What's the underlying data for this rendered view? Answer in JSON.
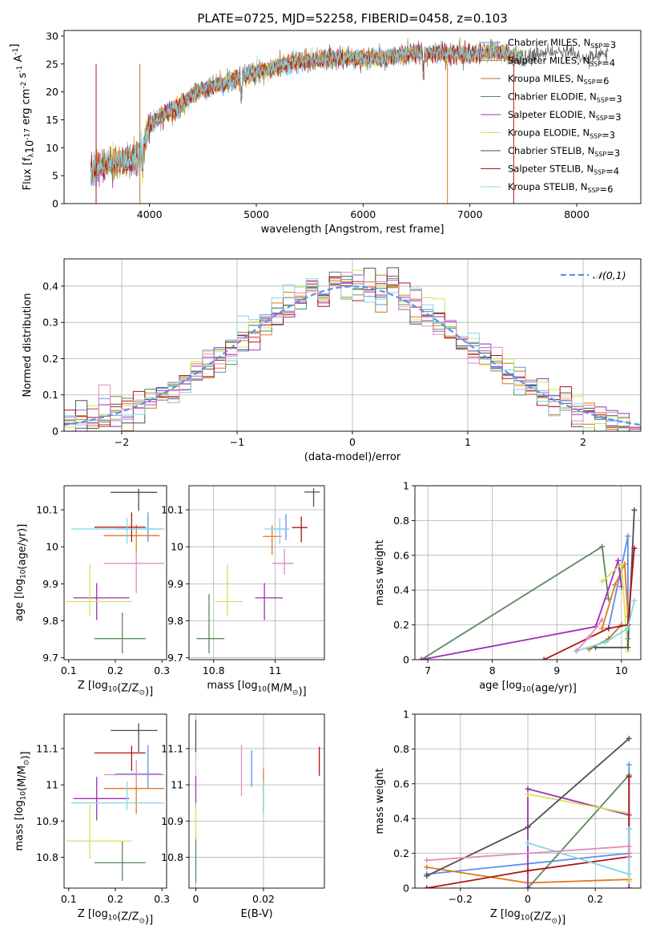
{
  "figure": {
    "sed": {
      "title": "PLATE=0725, MJD=52258, FIBERID=0458, z=0.103",
      "xlabel": "wavelength [Angstrom, rest frame]",
      "ylabel": "Flux [f$_{\\lambda}$10$^{-17}$ erg cm$^{-2}$ s$^{-1}$ A$^{-1}$]"
    },
    "hist": {
      "xlabel": "(data-model)/error",
      "ylabel": "Normed distribution",
      "legend": "$\\mathcal{N}(0,1)$"
    },
    "p3": {
      "xlabel": "Z [log$_{10}$(Z/Z$_{\\odot}$)]",
      "ylabel": "age  [log$_{10}$(age/yr)]"
    },
    "p4": {
      "xlabel": "mass [log$_{10}$(M/M$_{\\odot}$)]"
    },
    "p5": {
      "xlabel": "age  [log$_{10}$(age/yr)]",
      "ylabel": "mass weight"
    },
    "p6": {
      "xlabel": "Z [log$_{10}$(Z/Z$_{\\odot}$)]",
      "ylabel": "mass [log$_{10}$(M/M$_{\\odot}$)]"
    },
    "p7": {
      "xlabel": "E(B-V)"
    },
    "p8": {
      "xlabel": "Z [log$_{10}$(Z/Z$_{\\odot}$)]",
      "ylabel": "mass weight"
    }
  },
  "models": [
    {
      "name": "Chabrier MILES, N$_{SSP}$=3",
      "color": "#5b8ff0"
    },
    {
      "name": "Salpeter MILES, N$_{SSP}$=4",
      "color": "#e37a1e"
    },
    {
      "name": "Kroupa MILES, N$_{SSP}$=6",
      "color": "#b37a2a"
    },
    {
      "name": "Chabrier ELODIE, N$_{SSP}$=3",
      "color": "#5a8a5a"
    },
    {
      "name": "Salpeter ELODIE, N$_{SSP}$=3",
      "color": "#9e2fb5"
    },
    {
      "name": "Kroupa ELODIE, N$_{SSP}$=3",
      "color": "#d2e35a"
    },
    {
      "name": "Chabrier STELIB, N$_{SSP}$=3",
      "color": "#4f4f4f"
    },
    {
      "name": "Salpeter STELIB, N$_{SSP}$=4",
      "color": "#b01515"
    },
    {
      "name": "Kroupa STELIB, N$_{SSP}$=6",
      "color": "#7fd8e6"
    }
  ],
  "chart_data": [
    {
      "id": "sed",
      "type": "line",
      "title": "PLATE=0725, MJD=52258, FIBERID=0458, z=0.103",
      "xlabel": "wavelength [Angstrom, rest frame]",
      "ylabel": "Flux [f_lambda 10^-17 erg cm^-2 s^-1 A^-1]",
      "xlim": [
        3200,
        8600
      ],
      "ylim": [
        0,
        31
      ],
      "xticks": [
        4000,
        5000,
        6000,
        7000,
        8000
      ],
      "yticks": [
        0,
        5,
        10,
        15,
        20,
        25,
        30
      ],
      "grid": false,
      "legend": "top-right",
      "x": [
        3450,
        3500,
        3600,
        3700,
        3800,
        3900,
        3950,
        4000,
        4100,
        4200,
        4300,
        4400,
        4500,
        4600,
        4700,
        4800,
        4900,
        5000,
        5100,
        5200,
        5300,
        5400,
        5500,
        5600,
        5700,
        5800,
        5900,
        6000,
        6100,
        6200,
        6300,
        6400,
        6500,
        6600,
        6700,
        6800,
        6900,
        7000,
        7100,
        7200,
        7300,
        7400,
        7500,
        7600,
        7700,
        7800,
        7900,
        8000,
        8100,
        8200,
        8300
      ],
      "y": [
        5.5,
        6.0,
        7.0,
        7.5,
        8.0,
        8.5,
        10.5,
        14.0,
        15.5,
        16.5,
        17.5,
        19.5,
        20.5,
        21.0,
        21.5,
        22.0,
        23.0,
        23.5,
        24.0,
        24.5,
        25.0,
        25.5,
        25.5,
        25.8,
        26.0,
        26.0,
        26.0,
        26.0,
        26.0,
        26.2,
        26.5,
        26.8,
        27.0,
        27.0,
        27.0,
        26.8,
        26.8,
        26.8,
        27.0,
        27.2,
        27.0,
        26.5,
        26.0,
        26.5,
        26.8,
        27.0,
        27.0,
        26.5,
        26.0,
        26.5,
        26.8
      ]
    },
    {
      "id": "hist",
      "type": "line",
      "xlabel": "(data-model)/error",
      "ylabel": "Normed distribution",
      "xlim": [
        -2.5,
        2.5
      ],
      "ylim": [
        0,
        0.475
      ],
      "xticks": [
        -2,
        -1,
        0,
        1,
        2
      ],
      "yticks": [
        0.0,
        0.1,
        0.2,
        0.3,
        0.4
      ],
      "grid": true,
      "legend": "top-right",
      "series": [
        {
          "name": "$\\mathcal{N}(0,1)$",
          "x": [
            -2.5,
            -2.0,
            -1.5,
            -1.0,
            -0.5,
            0.0,
            0.5,
            1.0,
            1.5,
            2.0,
            2.5
          ],
          "y": [
            0.018,
            0.054,
            0.13,
            0.242,
            0.352,
            0.399,
            0.352,
            0.242,
            0.13,
            0.054,
            0.018
          ]
        }
      ],
      "bin_width": 0.1
    },
    {
      "id": "p3",
      "type": "scatter",
      "xlabel": "Z [log10(Z/Zsun)]",
      "ylabel": "age [log10(age/yr)]",
      "xlim": [
        0.09,
        0.31
      ],
      "ylim": [
        9.695,
        10.165
      ],
      "xticks": [
        0.1,
        0.2,
        0.3
      ],
      "yticks": [
        9.7,
        9.8,
        9.9,
        10.0,
        10.1
      ],
      "grid": false,
      "points": [
        {
          "m": 0,
          "x": 0.27,
          "y": 10.048,
          "xerr": [
            0.07,
            0.03
          ],
          "yerr": [
            0.035,
            0.045
          ]
        },
        {
          "m": 1,
          "x": 0.245,
          "y": 10.03,
          "xerr": [
            0.07,
            0.05
          ],
          "yerr": [
            0.05,
            0.03
          ]
        },
        {
          "m": 3,
          "x": 0.215,
          "y": 9.752,
          "xerr": [
            0.06,
            0.05
          ],
          "yerr": [
            0.04,
            0.07
          ]
        },
        {
          "m": 4,
          "x": 0.16,
          "y": 9.862,
          "xerr": [
            0.05,
            0.07
          ],
          "yerr": [
            0.06,
            0.04
          ]
        },
        {
          "m": 5,
          "x": 0.145,
          "y": 9.852,
          "xerr": [
            0.05,
            0.09
          ],
          "yerr": [
            0.04,
            0.1
          ]
        },
        {
          "m": 6,
          "x": 0.25,
          "y": 10.147,
          "xerr": [
            0.06,
            0.04
          ],
          "yerr": [
            0.05,
            0.01
          ]
        },
        {
          "m": 7,
          "x": 0.235,
          "y": 10.053,
          "xerr": [
            0.08,
            0.03
          ],
          "yerr": [
            0.04,
            0.04
          ]
        },
        {
          "m": 8,
          "x": 0.225,
          "y": 10.048,
          "xerr": [
            0.12,
            0.08
          ],
          "yerr": [
            0.04,
            0.03
          ]
        },
        {
          "m": 9,
          "x": 0.245,
          "y": 9.955,
          "xerr": [
            0.07,
            0.06
          ],
          "yerr": [
            0.08,
            0.03
          ]
        }
      ]
    },
    {
      "id": "p4",
      "type": "scatter",
      "xlabel": "mass [log10(M/Msun)]",
      "xlim": [
        10.72,
        11.16
      ],
      "ylim": [
        9.695,
        10.165
      ],
      "xticks": [
        10.8,
        11.0
      ],
      "yticks": [
        9.7,
        9.8,
        9.9,
        10.0,
        10.1
      ],
      "grid": true,
      "points": [
        {
          "m": 0,
          "x": 11.035,
          "y": 10.048,
          "xerr": [
            0.04,
            0.01
          ],
          "yerr": [
            0.03,
            0.04
          ]
        },
        {
          "m": 1,
          "x": 10.99,
          "y": 10.028,
          "xerr": [
            0.03,
            0.03
          ],
          "yerr": [
            0.05,
            0.03
          ]
        },
        {
          "m": 3,
          "x": 10.785,
          "y": 9.752,
          "xerr": [
            0.04,
            0.05
          ],
          "yerr": [
            0.04,
            0.12
          ]
        },
        {
          "m": 4,
          "x": 10.965,
          "y": 9.862,
          "xerr": [
            0.03,
            0.06
          ],
          "yerr": [
            0.06,
            0.04
          ]
        },
        {
          "m": 5,
          "x": 10.845,
          "y": 9.852,
          "xerr": [
            0.04,
            0.05
          ],
          "yerr": [
            0.04,
            0.1
          ]
        },
        {
          "m": 6,
          "x": 11.125,
          "y": 10.148,
          "xerr": [
            0.03,
            0.02
          ],
          "yerr": [
            0.04,
            0.01
          ]
        },
        {
          "m": 7,
          "x": 11.085,
          "y": 10.052,
          "xerr": [
            0.03,
            0.02
          ],
          "yerr": [
            0.04,
            0.03
          ]
        },
        {
          "m": 8,
          "x": 11.015,
          "y": 10.048,
          "xerr": [
            0.05,
            0.03
          ],
          "yerr": [
            0.04,
            0.03
          ]
        },
        {
          "m": 9,
          "x": 11.03,
          "y": 9.955,
          "xerr": [
            0.04,
            0.03
          ],
          "yerr": [
            0.03,
            0.04
          ]
        }
      ]
    },
    {
      "id": "p5",
      "type": "line",
      "xlabel": "age [log10(age/yr)]",
      "ylabel": "mass weight",
      "xlim": [
        6.8,
        10.3
      ],
      "ylim": [
        0,
        1.0
      ],
      "xticks": [
        7,
        8,
        9,
        10
      ],
      "yticks": [
        0.0,
        0.2,
        0.4,
        0.6,
        0.8,
        1.0
      ],
      "grid": true,
      "series": [
        {
          "m": 0,
          "x": [
            9.8,
            10.1,
            10.1
          ],
          "y": [
            0.18,
            0.71,
            0.12
          ]
        },
        {
          "m": 1,
          "x": [
            9.7,
            9.9,
            10.05,
            10.1
          ],
          "y": [
            0.18,
            0.43,
            0.55,
            0.25
          ]
        },
        {
          "m": 2,
          "x": [
            9.5,
            9.8,
            10.0
          ],
          "y": [
            0.06,
            0.12,
            0.2
          ]
        },
        {
          "m": 3,
          "x": [
            6.9,
            9.7,
            9.8
          ],
          "y": [
            0.0,
            0.65,
            0.35
          ]
        },
        {
          "m": 4,
          "x": [
            6.9,
            9.6,
            9.95,
            10.0
          ],
          "y": [
            0.0,
            0.19,
            0.57,
            0.42
          ]
        },
        {
          "m": 5,
          "x": [
            9.7,
            10.0,
            10.1
          ],
          "y": [
            0.45,
            0.55,
            0.05
          ]
        },
        {
          "m": 6,
          "x": [
            9.6,
            10.1,
            10.2
          ],
          "y": [
            0.07,
            0.07,
            0.86
          ]
        },
        {
          "m": 7,
          "x": [
            8.8,
            9.8,
            10.1,
            10.2
          ],
          "y": [
            0.0,
            0.18,
            0.2,
            0.64
          ]
        },
        {
          "m": 8,
          "x": [
            9.3,
            9.75,
            10.1,
            10.2
          ],
          "y": [
            0.05,
            0.1,
            0.18,
            0.34
          ]
        },
        {
          "m": 9,
          "x": [
            9.3,
            9.5,
            9.7
          ],
          "y": [
            0.05,
            0.13,
            0.23
          ]
        }
      ]
    },
    {
      "id": "p6",
      "type": "scatter",
      "xlabel": "Z [log10(Z/Zsun)]",
      "ylabel": "mass [log10(M/Msun)]",
      "xlim": [
        0.09,
        0.31
      ],
      "ylim": [
        10.715,
        11.195
      ],
      "xticks": [
        0.1,
        0.2,
        0.3
      ],
      "yticks": [
        10.8,
        10.9,
        11.0,
        11.1
      ],
      "grid": false,
      "points": [
        {
          "m": 0,
          "x": 0.27,
          "y": 11.03,
          "xerr": [
            0.07,
            0.03
          ],
          "yerr": [
            0.04,
            0.08
          ]
        },
        {
          "m": 1,
          "x": 0.245,
          "y": 10.99,
          "xerr": [
            0.07,
            0.06
          ],
          "yerr": [
            0.07,
            0.05
          ]
        },
        {
          "m": 3,
          "x": 0.215,
          "y": 10.785,
          "xerr": [
            0.06,
            0.05
          ],
          "yerr": [
            0.05,
            0.06
          ]
        },
        {
          "m": 4,
          "x": 0.16,
          "y": 10.962,
          "xerr": [
            0.05,
            0.07
          ],
          "yerr": [
            0.06,
            0.06
          ]
        },
        {
          "m": 5,
          "x": 0.145,
          "y": 10.845,
          "xerr": [
            0.05,
            0.09
          ],
          "yerr": [
            0.05,
            0.1
          ]
        },
        {
          "m": 6,
          "x": 0.25,
          "y": 11.15,
          "xerr": [
            0.06,
            0.04
          ],
          "yerr": [
            0.06,
            0.02
          ]
        },
        {
          "m": 7,
          "x": 0.235,
          "y": 11.088,
          "xerr": [
            0.08,
            0.03
          ],
          "yerr": [
            0.05,
            0.02
          ]
        },
        {
          "m": 8,
          "x": 0.225,
          "y": 10.95,
          "xerr": [
            0.12,
            0.08
          ],
          "yerr": [
            0.02,
            0.06
          ]
        },
        {
          "m": 9,
          "x": 0.245,
          "y": 11.028,
          "xerr": [
            0.07,
            0.06
          ],
          "yerr": [
            0.03,
            0.04
          ]
        }
      ]
    },
    {
      "id": "p7",
      "type": "scatter",
      "xlabel": "E(B-V)",
      "xlim": [
        -0.002,
        0.038
      ],
      "ylim": [
        10.715,
        11.195
      ],
      "xticks": [
        0.0,
        0.02
      ],
      "yticks": [
        10.8,
        10.9,
        11.0,
        11.1
      ],
      "grid": true,
      "points": [
        {
          "m": 0,
          "x": 0.0165,
          "y": 11.045,
          "yerr": [
            0.05,
            0.05
          ]
        },
        {
          "m": 1,
          "x": 0.02,
          "y": 10.985,
          "yerr": [
            0.06,
            0.06
          ]
        },
        {
          "m": 3,
          "x": 0.0,
          "y": 10.8,
          "yerr": [
            0.07,
            0.06
          ]
        },
        {
          "m": 4,
          "x": 0.0,
          "y": 10.985,
          "yerr": [
            0.05,
            0.04
          ]
        },
        {
          "m": 5,
          "x": 0.0,
          "y": 10.9,
          "yerr": [
            0.05,
            0.05
          ]
        },
        {
          "m": 6,
          "x": 0.0,
          "y": 11.13,
          "yerr": [
            0.04,
            0.05
          ]
        },
        {
          "m": 7,
          "x": 0.0365,
          "y": 11.065,
          "yerr": [
            0.04,
            0.04
          ]
        },
        {
          "m": 8,
          "x": 0.02,
          "y": 10.96,
          "yerr": [
            0.05,
            0.05
          ]
        },
        {
          "m": 9,
          "x": 0.0135,
          "y": 11.04,
          "yerr": [
            0.07,
            0.07
          ]
        }
      ]
    },
    {
      "id": "p8",
      "type": "line",
      "xlabel": "Z [log10(Z/Zsun)]",
      "ylabel": "mass weight",
      "xlim": [
        -0.335,
        0.335
      ],
      "ylim": [
        0,
        1.0
      ],
      "xticks": [
        -0.2,
        0.0,
        0.2
      ],
      "yticks": [
        0.0,
        0.2,
        0.4,
        0.6,
        0.8,
        1.0
      ],
      "grid": true,
      "series": [
        {
          "m": 0,
          "x": [
            -0.3,
            0.3,
            0.3
          ],
          "y": [
            0.08,
            0.2,
            0.71
          ]
        },
        {
          "m": 1,
          "x": [
            -0.3,
            0.0,
            0.3
          ],
          "y": [
            0.12,
            0.03,
            0.05
          ]
        },
        {
          "m": 3,
          "x": [
            0.0,
            0.3,
            0.3
          ],
          "y": [
            0.0,
            0.65,
            0.34
          ]
        },
        {
          "m": 4,
          "x": [
            0.0,
            0.0,
            0.3,
            0.3
          ],
          "y": [
            0.0,
            0.57,
            0.42,
            0.0
          ]
        },
        {
          "m": 5,
          "x": [
            0.0,
            0.3,
            0.3
          ],
          "y": [
            0.54,
            0.43,
            0.04
          ]
        },
        {
          "m": 6,
          "x": [
            -0.3,
            0.0,
            0.3
          ],
          "y": [
            0.07,
            0.35,
            0.86
          ]
        },
        {
          "m": 7,
          "x": [
            -0.3,
            0.0,
            0.3,
            0.3
          ],
          "y": [
            0.0,
            0.1,
            0.18,
            0.64
          ]
        },
        {
          "m": 8,
          "x": [
            0.0,
            0.3,
            0.3
          ],
          "y": [
            0.26,
            0.08,
            0.34
          ]
        },
        {
          "m": 9,
          "x": [
            -0.3,
            0.3,
            0.3
          ],
          "y": [
            0.16,
            0.24,
            0.18
          ]
        }
      ]
    }
  ]
}
